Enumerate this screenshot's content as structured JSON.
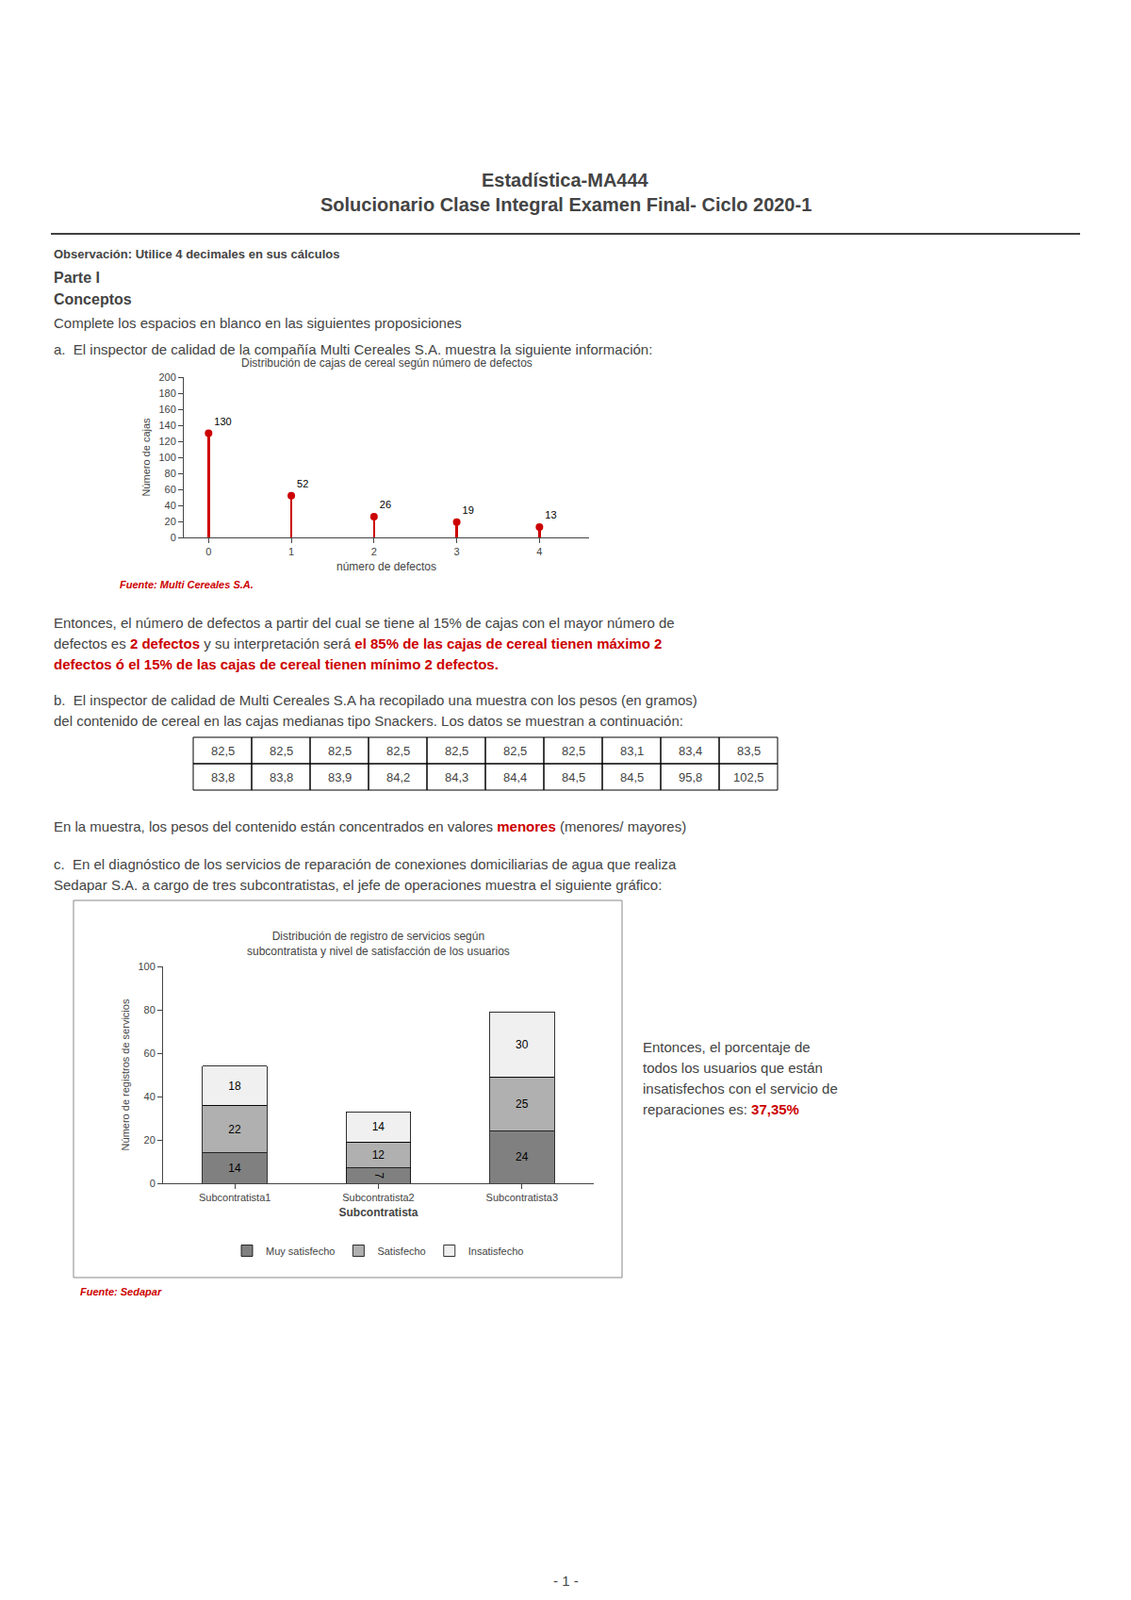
{
  "title": "Estadística-MA444",
  "subtitle": "Solucionario Clase Integral Examen Final- Ciclo 2020-1",
  "annotations": [
    {
      "text": "Observación: Utilice 4 decimales en sus cálculos"
    },
    {
      "text": "Parte I"
    },
    {
      "text": "Conceptos"
    },
    {
      "text": "Complete los espacios en blanco en las siguientes proposiciones"
    },
    {
      "text": "a.  El inspector de calidad de la compañía Multi Cereales S.A. muestra la siguiente información:"
    },
    {
      "text": "Entonces, el número de defectos a partir del cual se tiene al 15% de cajas con el mayor número de"
    },
    {
      "segments": [
        {
          "text": "defectos es "
        },
        {
          "text": "2 defectos",
          "color": "#cc0000"
        },
        {
          "text": " y su interpretación será "
        },
        {
          "text": "el 85% de las cajas de cereal tienen máximo 2",
          "color": "#cc0000"
        }
      ]
    },
    {
      "text": "defectos ó el 15% de las cajas de cereal tienen mínimo 2 defectos.",
      "color": "#cc0000"
    },
    {
      "text": "b.  El inspector de calidad de Multi Cereales S.A ha recopilado una muestra con los pesos (en gramos)"
    },
    {
      "text": "del contenido de cereal en las cajas medianas tipo Snackers. Los datos se muestran a continuación:"
    },
    {
      "segments": [
        {
          "text": "En la muestra, los pesos del contenido están concentrados en valores "
        },
        {
          "text": "menores",
          "color": "#cc0000"
        },
        {
          "text": " (menores/ mayores)"
        }
      ]
    },
    {
      "text": "c.  En el diagnóstico de los servicios de reparación de conexiones domiciliarias de agua que realiza"
    },
    {
      "text": "Sedapar S.A. a cargo de tres subcontratistas, el jefe de operaciones muestra el siguiente gráfico:"
    },
    {
      "text": "Entonces, el porcentaje de"
    },
    {
      "text": "todos los usuarios que están"
    },
    {
      "text": "insatisfechos con el servicio de"
    },
    {
      "segments": [
        {
          "text": "reparaciones es: "
        },
        {
          "text": "37,35%",
          "color": "#cc0000"
        }
      ]
    },
    {
      "text": "- 1 -"
    }
  ],
  "table": [
    [
      "82,5",
      "82,5",
      "82,5",
      "82,5",
      "82,5",
      "82,5",
      "82,5",
      "83,1",
      "83,4",
      "83,5"
    ],
    [
      "83,8",
      "83,8",
      "83,9",
      "84,2",
      "84,3",
      "84,4",
      "84,5",
      "84,5",
      "95,8",
      "102,5"
    ]
  ],
  "chart_data": [
    {
      "type": "stem",
      "title": "Distribución de cajas de cereal según número de defectos",
      "x": [
        0,
        1,
        2,
        3,
        4
      ],
      "values": [
        130,
        52,
        26,
        19,
        13
      ],
      "color": "#cc0000",
      "xlabel": "número de defectos",
      "ylabel": "Número de cajas",
      "xlim": [
        -0.3,
        4.6
      ],
      "xticks": [
        0,
        1,
        2,
        3,
        4
      ],
      "ylim": [
        0,
        200
      ],
      "yticks": [
        0,
        20,
        40,
        60,
        80,
        100,
        120,
        140,
        160,
        180,
        200
      ],
      "grid": false,
      "data_labels": true,
      "annotations": [
        {
          "text": "Fuente: Multi Cereales S.A.",
          "color": "#cc0000"
        }
      ]
    },
    {
      "type": "bar",
      "stacked": true,
      "title": "Distribución de registro de servicios según\nsubcontratista y nivel de satisfacción de los usuarios",
      "categories": [
        "Subcontratista1",
        "Subcontratista2",
        "Subcontratista3"
      ],
      "series": [
        {
          "name": "Muy satisfecho",
          "color": "#808080",
          "values": [
            14,
            7,
            24
          ]
        },
        {
          "name": "Satisfecho",
          "color": "#b0b0b0",
          "values": [
            22,
            12,
            25
          ]
        },
        {
          "name": "Insatisfecho",
          "color": "#f0f0f0",
          "values": [
            18,
            14,
            30
          ]
        }
      ],
      "xlabel": "Subcontratista",
      "ylabel": "Número de registros de servicios",
      "ylim": [
        0,
        100
      ],
      "yticks": [
        0,
        20,
        40,
        60,
        80,
        100
      ],
      "grid": false,
      "legend": "bottom",
      "data_labels": true,
      "annotations": [
        {
          "text": "Fuente: Sedapar",
          "color": "#cc0000"
        }
      ]
    }
  ]
}
